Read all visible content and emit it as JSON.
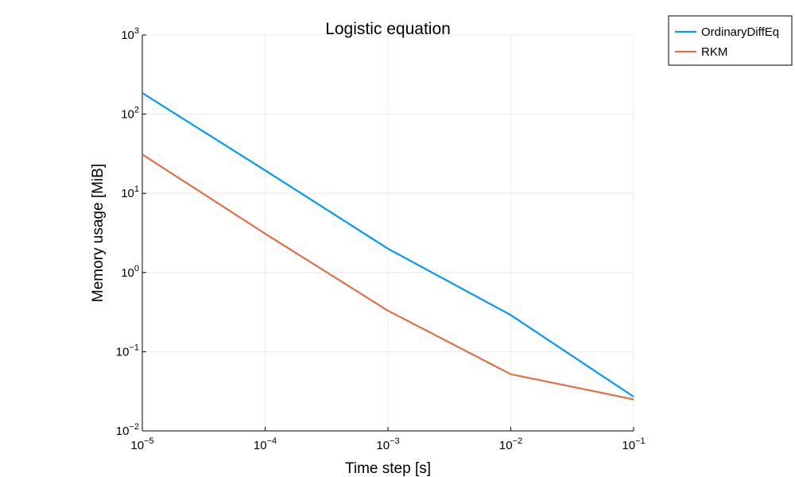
{
  "chart_data": {
    "type": "line",
    "title": "Logistic equation",
    "xlabel": "Time step [s]",
    "ylabel": "Memory usage [MiB]",
    "xscale": "log",
    "yscale": "log",
    "xlim": [
      1e-05,
      0.1
    ],
    "ylim": [
      0.01,
      1000
    ],
    "grid": true,
    "legend_position": "outside-top-right",
    "x": [
      1e-05,
      0.0001,
      0.001,
      0.01,
      0.1
    ],
    "x_ticks": [
      {
        "base": "10",
        "exp": "−5"
      },
      {
        "base": "10",
        "exp": "−4"
      },
      {
        "base": "10",
        "exp": "−3"
      },
      {
        "base": "10",
        "exp": "−2"
      },
      {
        "base": "10",
        "exp": "−1"
      }
    ],
    "y_ticks": [
      {
        "base": "10",
        "exp": "−2"
      },
      {
        "base": "10",
        "exp": "−1"
      },
      {
        "base": "10",
        "exp": "0"
      },
      {
        "base": "10",
        "exp": "1"
      },
      {
        "base": "10",
        "exp": "2"
      },
      {
        "base": "10",
        "exp": "3"
      }
    ],
    "series": [
      {
        "name": "OrdinaryDiffEq",
        "color": "#009af9",
        "values": [
          185,
          19.5,
          2.0,
          0.29,
          0.027
        ]
      },
      {
        "name": "RKM",
        "color": "#e26f46",
        "values": [
          31,
          3.1,
          0.33,
          0.052,
          0.025
        ]
      }
    ]
  }
}
